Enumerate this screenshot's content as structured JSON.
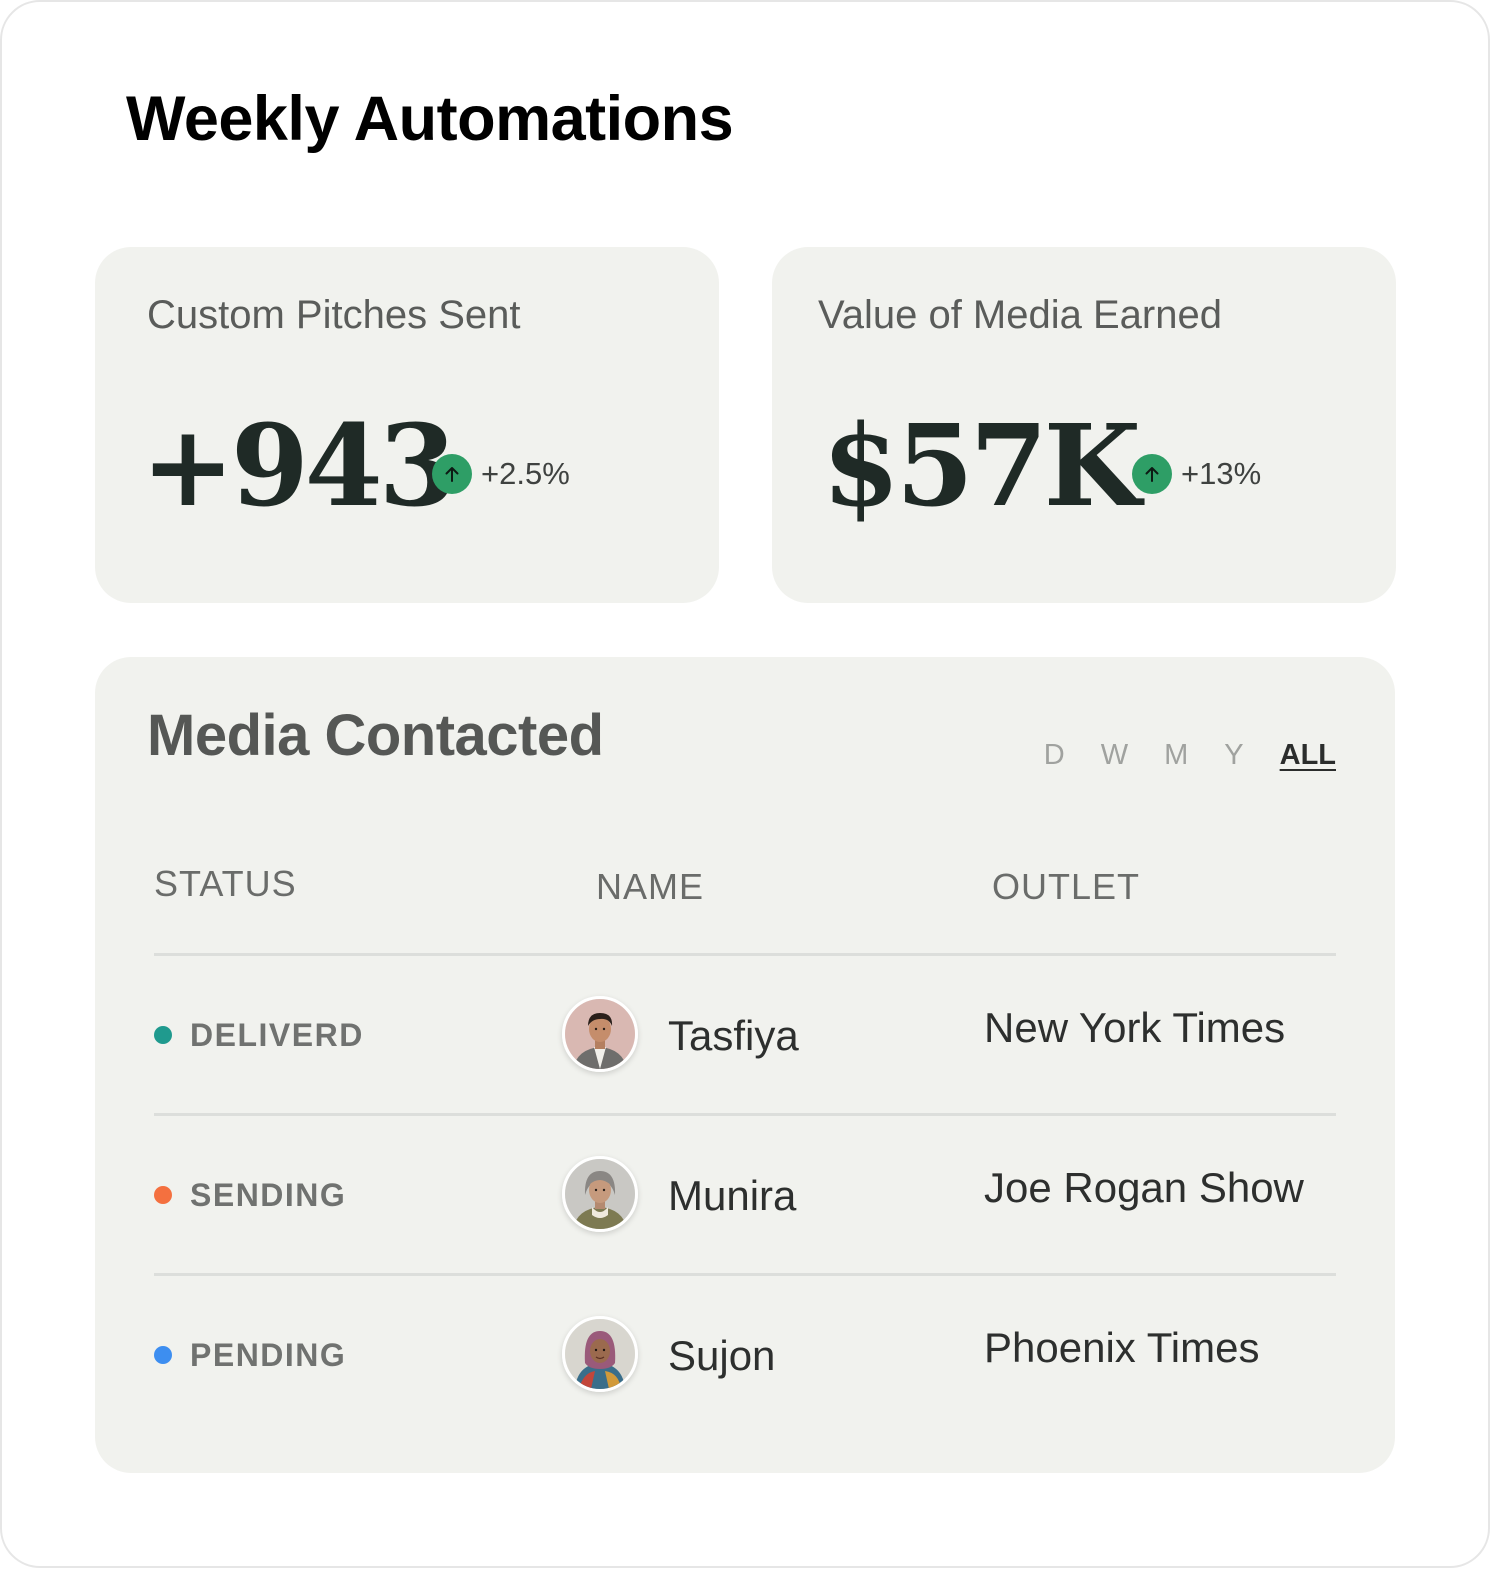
{
  "page": {
    "title": "Weekly Automations"
  },
  "stats": [
    {
      "label": "Custom Pitches Sent",
      "value": "+943",
      "change": "+2.5%",
      "trend_icon": "arrow-up-icon"
    },
    {
      "label": "Value of Media Earned",
      "value": "$57K",
      "change": "+13%",
      "trend_icon": "arrow-up-icon"
    }
  ],
  "media": {
    "title": "Media Contacted",
    "ranges": [
      {
        "label": "D",
        "active": false
      },
      {
        "label": "W",
        "active": false
      },
      {
        "label": "M",
        "active": false
      },
      {
        "label": "Y",
        "active": false
      },
      {
        "label": "ALL",
        "active": true
      }
    ],
    "columns": {
      "status": "STATUS",
      "name": "NAME",
      "outlet": "OUTLET"
    },
    "rows": [
      {
        "status": "DELIVERD",
        "status_color": "#1f9a8e",
        "name": "Tasfiya",
        "outlet": "New York Times",
        "avatar_icon": "man-portrait-icon"
      },
      {
        "status": "SENDING",
        "status_color": "#f4703f",
        "name": "Munira",
        "outlet": "Joe Rogan Show",
        "avatar_icon": "woman-portrait-icon"
      },
      {
        "status": "PENDING",
        "status_color": "#3d8ef0",
        "name": "Sujon",
        "outlet": "Phoenix Times",
        "avatar_icon": "woman-hijab-portrait-icon"
      }
    ]
  },
  "colors": {
    "card_background": "#f1f2ee",
    "trend_up": "#2e9e66",
    "value_text": "#1f2a26"
  }
}
